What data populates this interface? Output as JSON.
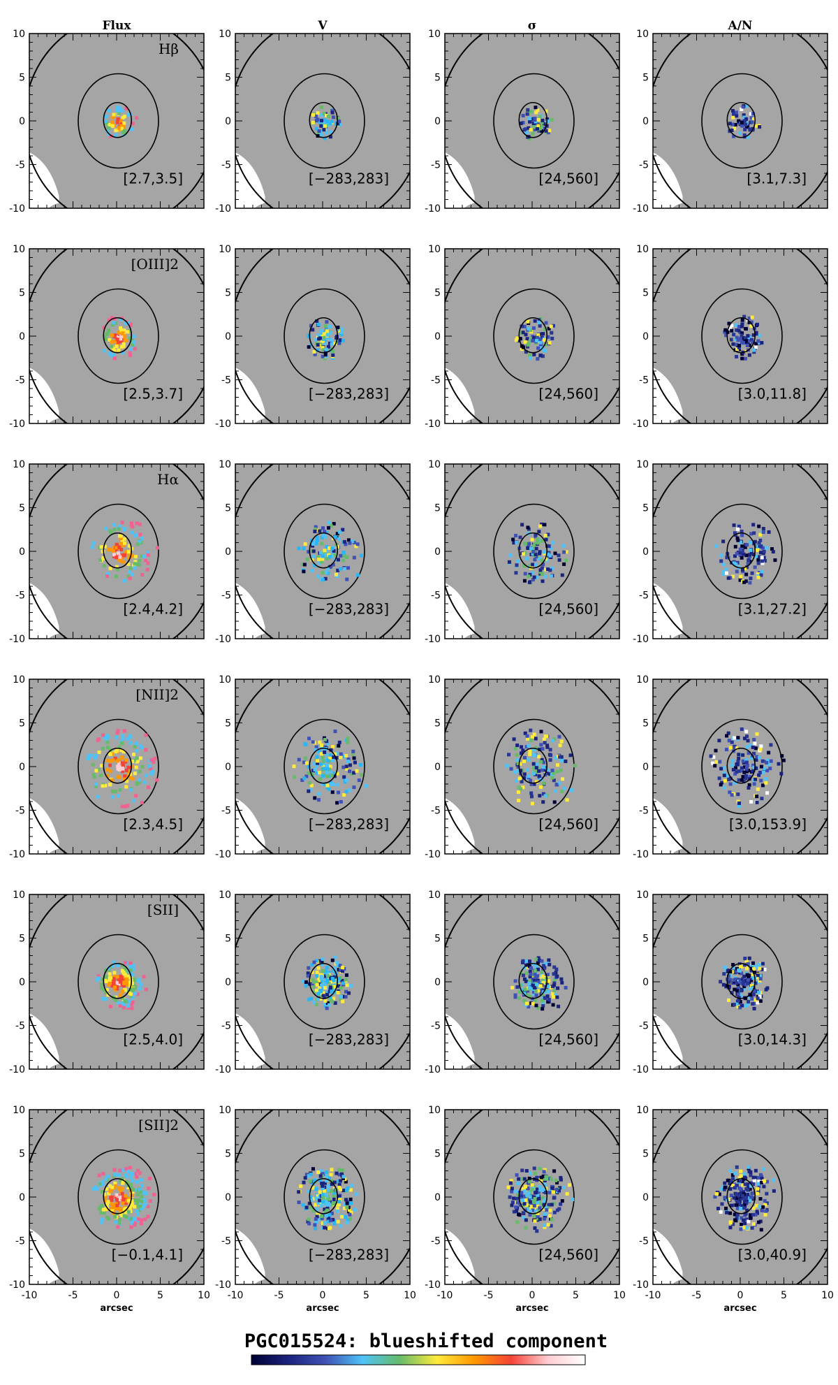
{
  "chart_data": {
    "type": "heatmap",
    "title": "PGC015524: blueshifted component",
    "columns": [
      "Flux",
      "V",
      "σ",
      "A/N"
    ],
    "xlabel": "arcsec",
    "ylabel": "",
    "xlim": [
      -10,
      10
    ],
    "ylim": [
      -10,
      10
    ],
    "xticks": [
      -10,
      -5,
      0,
      5,
      10
    ],
    "yticks": [
      10,
      5,
      0,
      -5,
      -10
    ],
    "rows": [
      {
        "line": "Hβ",
        "ranges": [
          "[2.7,3.5]",
          "[−283,283]",
          "[24,560]",
          "[3.1,7.3]"
        ]
      },
      {
        "line": "[OIII]2",
        "ranges": [
          "[2.5,3.7]",
          "[−283,283]",
          "[24,560]",
          "[3.0,11.8]"
        ]
      },
      {
        "line": "Hα",
        "ranges": [
          "[2.4,4.2]",
          "[−283,283]",
          "[24,560]",
          "[3.1,27.2]"
        ]
      },
      {
        "line": "[NII]2",
        "ranges": [
          "[2.3,4.5]",
          "[−283,283]",
          "[24,560]",
          "[3.0,153.9]"
        ]
      },
      {
        "line": "[SII]",
        "ranges": [
          "[2.5,4.0]",
          "[−283,283]",
          "[24,560]",
          "[3.0,14.3]"
        ]
      },
      {
        "line": "[SII]2",
        "ranges": [
          "[−0.1,4.1]",
          "[−283,283]",
          "[24,560]",
          "[3.0,40.9]"
        ]
      }
    ],
    "colorbar": [
      "#000033",
      "#1a237e",
      "#3f51b5",
      "#4fc3f7",
      "#66bb6a",
      "#ffeb3b",
      "#ff9800",
      "#f44336",
      "#ffcdd2",
      "#ffffff"
    ]
  }
}
